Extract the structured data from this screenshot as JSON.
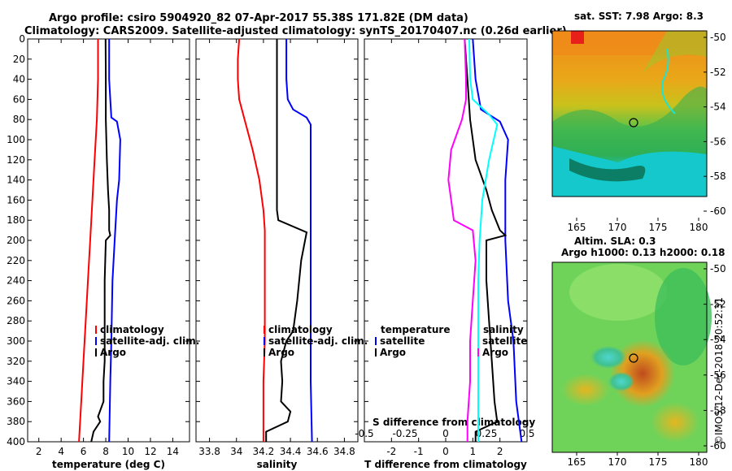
{
  "title": {
    "line1": "Argo profile: csiro 5904920_82 07-Apr-2017 55.38S 171.82E (DM data)",
    "line2": "Climatology: CARS2009. Satellite-adjusted climatology: synTS_20170407.nc (0.26d earlier)"
  },
  "chart_data": [
    {
      "type": "line",
      "name": "temperature",
      "xlabel": "temperature (deg C)",
      "ylabel": "",
      "xlim": [
        1,
        15.5
      ],
      "ylim": [
        400,
        0
      ],
      "xticks": [
        2,
        4,
        6,
        8,
        10,
        12,
        14
      ],
      "yticks": [
        0,
        20,
        40,
        60,
        80,
        100,
        120,
        140,
        160,
        180,
        200,
        220,
        240,
        260,
        280,
        300,
        320,
        340,
        360,
        380,
        400
      ],
      "legend": {
        "position": "right",
        "entries": [
          {
            "label": "climatology",
            "color": "#ff0000"
          },
          {
            "label": "satellite-adj. clim.",
            "color": "#0000ff"
          },
          {
            "label": "Argo",
            "color": "#000000"
          }
        ]
      },
      "series": [
        {
          "name": "climatology",
          "color": "#ff0000",
          "points": [
            [
              7.3,
              0
            ],
            [
              7.3,
              40
            ],
            [
              7.2,
              80
            ],
            [
              7.0,
              120
            ],
            [
              6.8,
              160
            ],
            [
              6.6,
              200
            ],
            [
              6.4,
              240
            ],
            [
              6.2,
              280
            ],
            [
              6.0,
              320
            ],
            [
              5.8,
              360
            ],
            [
              5.6,
              400
            ]
          ]
        },
        {
          "name": "satellite-adj. clim.",
          "color": "#0000ff",
          "points": [
            [
              8.3,
              0
            ],
            [
              8.3,
              40
            ],
            [
              8.4,
              60
            ],
            [
              8.5,
              78
            ],
            [
              9.0,
              82
            ],
            [
              9.3,
              100
            ],
            [
              9.2,
              140
            ],
            [
              9.0,
              160
            ],
            [
              8.8,
              200
            ],
            [
              8.6,
              240
            ],
            [
              8.5,
              300
            ],
            [
              8.4,
              340
            ],
            [
              8.3,
              400
            ]
          ]
        },
        {
          "name": "Argo",
          "color": "#000000",
          "points": [
            [
              7.98,
              0
            ],
            [
              8.0,
              40
            ],
            [
              8.0,
              80
            ],
            [
              8.1,
              120
            ],
            [
              8.2,
              150
            ],
            [
              8.3,
              170
            ],
            [
              8.3,
              190
            ],
            [
              8.4,
              195
            ],
            [
              8.0,
              200
            ],
            [
              7.9,
              240
            ],
            [
              7.9,
              280
            ],
            [
              7.9,
              320
            ],
            [
              7.8,
              340
            ],
            [
              7.8,
              360
            ],
            [
              7.3,
              375
            ],
            [
              7.5,
              380
            ],
            [
              6.9,
              390
            ],
            [
              6.7,
              400
            ]
          ]
        }
      ]
    },
    {
      "type": "line",
      "name": "salinity",
      "xlabel": "salinity",
      "ylabel": "",
      "xlim": [
        33.7,
        34.9
      ],
      "ylim": [
        400,
        0
      ],
      "xticks": [
        33.8,
        34,
        34.2,
        34.4,
        34.6,
        34.8
      ],
      "legend": {
        "position": "right",
        "entries": [
          {
            "label": "climatology",
            "color": "#ff0000"
          },
          {
            "label": "satellite-adj. clim.",
            "color": "#0000ff"
          },
          {
            "label": "Argo",
            "color": "#000000"
          }
        ]
      },
      "series": [
        {
          "name": "climatology",
          "color": "#ff0000",
          "points": [
            [
              34.02,
              0
            ],
            [
              34.01,
              20
            ],
            [
              34.01,
              40
            ],
            [
              34.02,
              60
            ],
            [
              34.06,
              80
            ],
            [
              34.12,
              110
            ],
            [
              34.17,
              140
            ],
            [
              34.2,
              170
            ],
            [
              34.21,
              190
            ],
            [
              34.21,
              220
            ],
            [
              34.21,
              260
            ],
            [
              34.21,
              300
            ],
            [
              34.2,
              340
            ],
            [
              34.2,
              380
            ],
            [
              34.2,
              400
            ]
          ]
        },
        {
          "name": "satellite-adj. clim.",
          "color": "#0000ff",
          "points": [
            [
              34.37,
              0
            ],
            [
              34.37,
              40
            ],
            [
              34.38,
              60
            ],
            [
              34.42,
              70
            ],
            [
              34.52,
              78
            ],
            [
              34.55,
              85
            ],
            [
              34.55,
              140
            ],
            [
              34.55,
              180
            ],
            [
              34.55,
              260
            ],
            [
              34.55,
              340
            ],
            [
              34.56,
              400
            ]
          ]
        },
        {
          "name": "Argo",
          "color": "#000000",
          "points": [
            [
              34.3,
              0
            ],
            [
              34.3,
              40
            ],
            [
              34.3,
              80
            ],
            [
              34.3,
              120
            ],
            [
              34.3,
              160
            ],
            [
              34.3,
              170
            ],
            [
              34.31,
              180
            ],
            [
              34.52,
              192
            ],
            [
              34.48,
              220
            ],
            [
              34.45,
              260
            ],
            [
              34.42,
              290
            ],
            [
              34.37,
              300
            ],
            [
              34.35,
              310
            ],
            [
              34.33,
              320
            ],
            [
              34.34,
              340
            ],
            [
              34.33,
              360
            ],
            [
              34.4,
              370
            ],
            [
              34.38,
              380
            ],
            [
              34.22,
              390
            ],
            [
              34.22,
              400
            ]
          ]
        }
      ]
    },
    {
      "type": "line",
      "name": "difference",
      "xlabel": "T difference from climatology",
      "x2label": "S difference from climatology",
      "ylabel": "",
      "xlim": [
        -3,
        3
      ],
      "ylim": [
        400,
        0
      ],
      "xticks": [
        -2,
        -1,
        0,
        1,
        2
      ],
      "x2ticks": [
        -0.5,
        -0.25,
        0,
        0.25,
        0.5
      ],
      "legend": {
        "position": "right",
        "entries": [
          {
            "label": "temperature",
            "color": "#000000"
          },
          {
            "label": "satellite",
            "color": "#0000ff"
          },
          {
            "label": "Argo",
            "color": "#000000"
          },
          {
            "label": "salinity",
            "color": "#000000"
          },
          {
            "label": "satellite",
            "color": "#00ffff"
          },
          {
            "label": "Argo",
            "color": "#ff00ff"
          }
        ]
      },
      "series": [
        {
          "name": "T satellite",
          "color": "#0000ff",
          "points": [
            [
              1.0,
              0
            ],
            [
              1.1,
              40
            ],
            [
              1.3,
              70
            ],
            [
              2.0,
              82
            ],
            [
              2.3,
              100
            ],
            [
              2.2,
              140
            ],
            [
              2.2,
              200
            ],
            [
              2.3,
              260
            ],
            [
              2.5,
              300
            ],
            [
              2.6,
              360
            ],
            [
              2.8,
              400
            ]
          ]
        },
        {
          "name": "T Argo",
          "color": "#000000",
          "points": [
            [
              0.7,
              0
            ],
            [
              0.8,
              40
            ],
            [
              0.9,
              80
            ],
            [
              1.1,
              120
            ],
            [
              1.5,
              150
            ],
            [
              1.7,
              170
            ],
            [
              2.0,
              190
            ],
            [
              2.2,
              195
            ],
            [
              1.5,
              200
            ],
            [
              1.5,
              240
            ],
            [
              1.6,
              280
            ],
            [
              1.7,
              320
            ],
            [
              1.8,
              360
            ],
            [
              1.9,
              380
            ],
            [
              1.1,
              390
            ],
            [
              1.1,
              400
            ]
          ]
        },
        {
          "name": "S satellite",
          "color": "#00ffff",
          "points": [
            [
              0.87,
              0
            ],
            [
              0.9,
              40
            ],
            [
              1.0,
              60
            ],
            [
              1.6,
              75
            ],
            [
              1.9,
              85
            ],
            [
              1.6,
              120
            ],
            [
              1.35,
              160
            ],
            [
              1.25,
              200
            ],
            [
              1.2,
              240
            ],
            [
              1.2,
              300
            ],
            [
              1.2,
              340
            ],
            [
              1.2,
              400
            ]
          ]
        },
        {
          "name": "S Argo",
          "color": "#ff00ff",
          "points": [
            [
              0.7,
              0
            ],
            [
              0.75,
              40
            ],
            [
              0.75,
              60
            ],
            [
              0.6,
              80
            ],
            [
              0.2,
              110
            ],
            [
              0.1,
              140
            ],
            [
              0.2,
              160
            ],
            [
              0.3,
              180
            ],
            [
              1.0,
              190
            ],
            [
              1.1,
              220
            ],
            [
              1.0,
              260
            ],
            [
              0.9,
              300
            ],
            [
              0.9,
              340
            ],
            [
              0.8,
              380
            ],
            [
              0.8,
              400
            ]
          ]
        }
      ]
    }
  ],
  "maps": {
    "sst": {
      "title": "sat. SST: 7.98 Argo: 8.3",
      "xticks": [
        "165",
        "170",
        "175",
        "180"
      ],
      "yticks": [
        "-50",
        "-52",
        "-54",
        "-56",
        "-58",
        "-60"
      ]
    },
    "sla": {
      "title1": "Altim. SLA: 0.3",
      "title2": "Argo h1000: 0.13 h2000: 0.18",
      "xticks": [
        "165",
        "170",
        "175",
        "180"
      ],
      "yticks": [
        "-50",
        "-52",
        "-54",
        "-56",
        "-58",
        "-60"
      ]
    }
  },
  "credit": "©IMOS 12-Dec-2018 20:52:31"
}
